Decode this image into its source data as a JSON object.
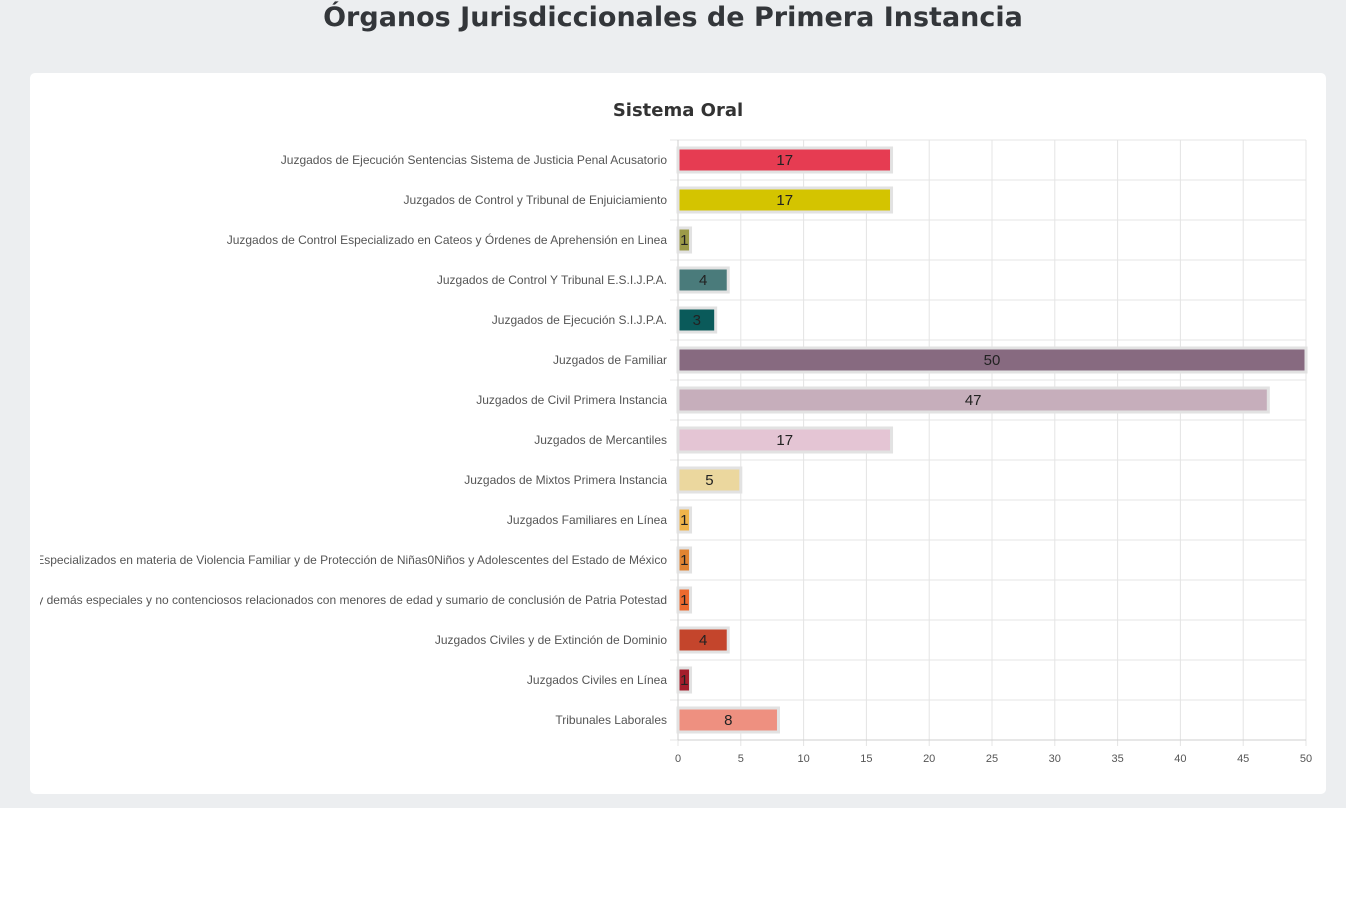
{
  "page": {
    "title": "Órganos Jurisdiccionales de Primera Instancia"
  },
  "chart_data": {
    "type": "bar",
    "orientation": "horizontal",
    "title": "Sistema Oral",
    "xlim": [
      0,
      50
    ],
    "x_ticks": [
      0,
      5,
      10,
      15,
      20,
      25,
      30,
      35,
      40,
      45,
      50
    ],
    "grid": true,
    "categories": [
      "Juzgados de Ejecución Sentencias Sistema de Justicia Penal Acusatorio",
      "Juzgados de Control y Tribunal de Enjuiciamiento",
      "Juzgados de Control Especializado en Cateos y Órdenes de Aprehensión en Linea",
      "Juzgados de Control Y Tribunal E.S.I.J.P.A.",
      "Juzgados de Ejecución S.I.J.P.A.",
      "Juzgados de Familiar",
      "Juzgados de Civil Primera Instancia",
      "Juzgados de Mercantiles",
      "Juzgados de Mixtos Primera Instancia",
      "Juzgados  Familiares en Línea",
      "Juzgados Especializados en materia de Violencia Familiar y de Protección de Niñas0Niños y Adolescentes del Estado de México",
      "Juzgados de Adopción y demás especiales y no contenciosos relacionados con menores de edad y sumario de conclusión de Patria Potestad",
      "Juzgados Civiles y de Extinción de Dominio",
      "Juzgados Civiles en Línea",
      "Tribunales Laborales"
    ],
    "values": [
      17,
      17,
      1,
      4,
      3,
      50,
      47,
      17,
      5,
      1,
      1,
      1,
      4,
      1,
      8
    ],
    "colors": [
      "#e63c52",
      "#d4c400",
      "#9c9a48",
      "#4a7b7b",
      "#0a5a5a",
      "#876a80",
      "#c6aebb",
      "#e4c5d4",
      "#ebd79e",
      "#f0b44a",
      "#e08432",
      "#ec6a2e",
      "#c4452c",
      "#a41e2c",
      "#ee9080"
    ]
  }
}
